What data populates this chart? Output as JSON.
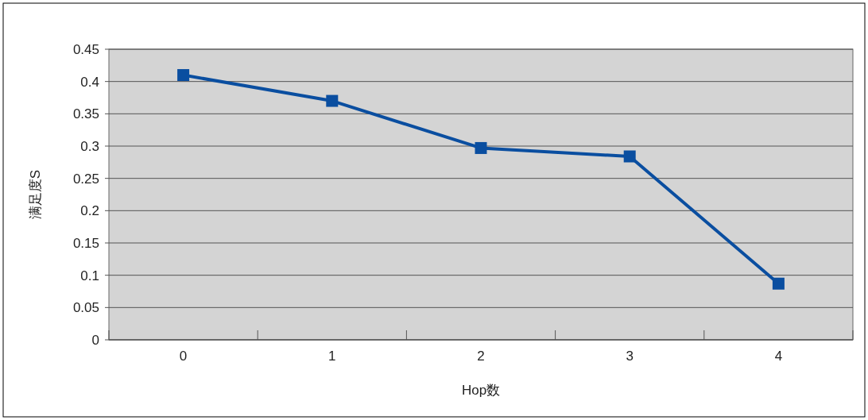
{
  "chart_data": {
    "type": "line",
    "categories": [
      "0",
      "1",
      "2",
      "3",
      "4"
    ],
    "series": [
      {
        "color": "#0a4ea0",
        "values": [
          0.41,
          0.37,
          0.297,
          0.284,
          0.087
        ]
      }
    ],
    "xlabel": "Hop数",
    "ylabel": "满足度S",
    "ylim": [
      0,
      0.45
    ],
    "yticks": [
      0,
      0.05,
      0.1,
      0.15,
      0.2,
      0.25,
      0.3,
      0.35,
      0.4,
      0.45
    ],
    "grid": "y",
    "marker": "square",
    "line_style": "solid"
  }
}
